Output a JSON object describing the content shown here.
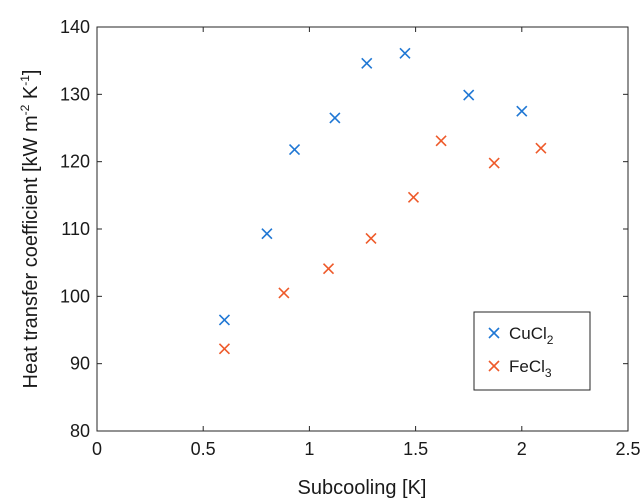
{
  "chart_data": {
    "type": "scatter",
    "title": "",
    "xlabel": "Subcooling [K]",
    "ylabel": {
      "main": "Heat transfer coefficient [kW m",
      "exp1": "-2",
      "mid": " K",
      "exp2": "-1",
      "close": "]"
    },
    "xlim": [
      0,
      2.5
    ],
    "ylim": [
      80,
      140
    ],
    "xticks": [
      "0",
      "0.5",
      "1",
      "1.5",
      "2",
      "2.5"
    ],
    "yticks": [
      "80",
      "90",
      "100",
      "110",
      "120",
      "130",
      "140"
    ],
    "grid": false,
    "legend_position": "bottom-right",
    "marker": "x",
    "series": [
      {
        "name": "CuCl2",
        "name_base": "CuCl",
        "name_sub": "2",
        "color": "#1f77d4",
        "x": [
          0.6,
          0.8,
          0.93,
          1.12,
          1.27,
          1.45,
          1.75,
          2.0
        ],
        "y": [
          96.5,
          109.3,
          121.8,
          126.5,
          134.6,
          136.1,
          129.9,
          127.5
        ]
      },
      {
        "name": "FeCl3",
        "name_base": "FeCl",
        "name_sub": "3",
        "color": "#ee5a2a",
        "x": [
          0.6,
          0.88,
          1.09,
          1.29,
          1.49,
          1.62,
          1.87,
          2.09
        ],
        "y": [
          92.2,
          100.5,
          104.1,
          108.6,
          114.7,
          123.1,
          119.8,
          122.0
        ]
      }
    ]
  }
}
